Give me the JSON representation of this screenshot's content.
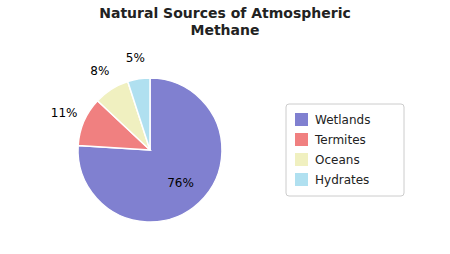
{
  "chart_data": {
    "type": "pie",
    "title": "Natural Sources of Atmospheric\nMethane",
    "categories": [
      "Wetlands",
      "Termites",
      "Oceans",
      "Hydrates"
    ],
    "values": [
      76,
      11,
      8,
      5
    ],
    "value_labels": [
      "76%",
      "11%",
      "8%",
      "5%"
    ],
    "colors": [
      "#8080d0",
      "#f08080",
      "#f0f0c0",
      "#b0e0f0"
    ],
    "data_labels": true,
    "legend": "right"
  }
}
